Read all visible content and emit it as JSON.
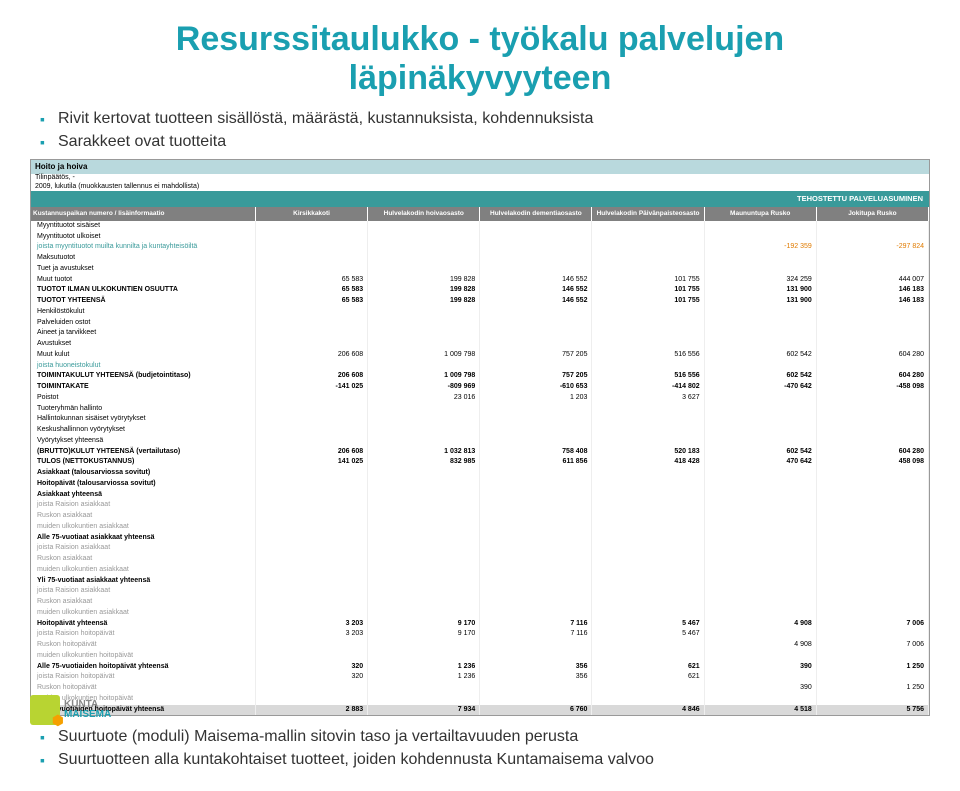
{
  "title_line1": "Resurssitaulukko - työkalu palvelujen",
  "title_line2": "läpinäkyvyyteen",
  "top_bullets": [
    "Rivit kertovat tuotteen sisällöstä, määrästä, kustannuksista, kohdennuksista",
    "Sarakkeet ovat tuotteita"
  ],
  "bottom_bullets": [
    "Suurtuote (moduli) Maisema-mallin sitovin taso ja vertailtavuuden perusta",
    "Suurtuotteen alla kuntakohtaiset tuotteet, joiden kohdennusta Kuntamaisema valvoo"
  ],
  "sheet": {
    "section_label": "Hoito ja hoiva",
    "meta": [
      "Tilinpäätös, -",
      "2009, lukutila (muokkausten tallennus ei mahdollista)"
    ],
    "band_title": "TEHOSTETTU PALVELUASUMINEN",
    "label_col_header": "Kustannuspaikan numero / lisäinformaatio",
    "columns": [
      "Kirsikkakoti",
      "Hulvelakodin hoivaosasto",
      "Hulvelakodin dementiaosasto",
      "Hulvelakodin Päivänpaisteosasto",
      "Maununtupa Rusko",
      "Jokitupa Rusko"
    ],
    "rows": [
      {
        "label": "Myyntituotot sisäiset",
        "vals": [
          "",
          "",
          "",
          "",
          "",
          ""
        ]
      },
      {
        "label": "Myyntituotot ulkoiset",
        "vals": [
          "",
          "",
          "",
          "",
          "",
          ""
        ]
      },
      {
        "label": "joista myyntituotot muilta kunnilta ja kuntayhteisöiltä",
        "vals": [
          "",
          "",
          "",
          "",
          "-192 359",
          "-297 824"
        ],
        "style": "teal orange-last2"
      },
      {
        "label": "Maksutuotot",
        "vals": [
          "",
          "",
          "",
          "",
          "",
          ""
        ]
      },
      {
        "label": "Tuet ja avustukset",
        "vals": [
          "",
          "",
          "",
          "",
          "",
          ""
        ]
      },
      {
        "label": "Muut tuotot",
        "vals": [
          "65 583",
          "199 828",
          "146 552",
          "101 755",
          "324 259",
          "444 007"
        ]
      },
      {
        "label": "TUOTOT ILMAN ULKOKUNTIEN OSUUTTA",
        "vals": [
          "65 583",
          "199 828",
          "146 552",
          "101 755",
          "131 900",
          "146 183"
        ],
        "style": "bold"
      },
      {
        "label": "TUOTOT YHTEENSÄ",
        "vals": [
          "65 583",
          "199 828",
          "146 552",
          "101 755",
          "131 900",
          "146 183"
        ],
        "style": "bold"
      },
      {
        "label": "Henkilöstökulut",
        "vals": [
          "",
          "",
          "",
          "",
          "",
          ""
        ]
      },
      {
        "label": "Palveluiden ostot",
        "vals": [
          "",
          "",
          "",
          "",
          "",
          ""
        ]
      },
      {
        "label": "Aineet ja tarvikkeet",
        "vals": [
          "",
          "",
          "",
          "",
          "",
          ""
        ]
      },
      {
        "label": "Avustukset",
        "vals": [
          "",
          "",
          "",
          "",
          "",
          ""
        ]
      },
      {
        "label": "Muut kulut",
        "vals": [
          "206 608",
          "1 009 798",
          "757 205",
          "516 556",
          "602 542",
          "604 280"
        ]
      },
      {
        "label": "joista huoneistokulut",
        "vals": [
          "",
          "",
          "",
          "",
          "",
          ""
        ],
        "style": "teal"
      },
      {
        "label": "TOIMINTAKULUT YHTEENSÄ (budjetointitaso)",
        "vals": [
          "206 608",
          "1 009 798",
          "757 205",
          "516 556",
          "602 542",
          "604 280"
        ],
        "style": "bold"
      },
      {
        "label": "TOIMINTAKATE",
        "vals": [
          "-141 025",
          "-809 969",
          "-610 653",
          "-414 802",
          "-470 642",
          "-458 098"
        ],
        "style": "bold"
      },
      {
        "label": "Poistot",
        "vals": [
          "",
          "23 016",
          "1 203",
          "3 627",
          "",
          ""
        ]
      },
      {
        "label": "Tuoteryhmän hallinto",
        "vals": [
          "",
          "",
          "",
          "",
          "",
          ""
        ]
      },
      {
        "label": "Hallintokunnan sisäiset vyörytykset",
        "vals": [
          "",
          "",
          "",
          "",
          "",
          ""
        ]
      },
      {
        "label": "Keskushallinnon vyörytykset",
        "vals": [
          "",
          "",
          "",
          "",
          "",
          ""
        ]
      },
      {
        "label": "Vyörytykset yhteensä",
        "vals": [
          "",
          "",
          "",
          "",
          "",
          ""
        ]
      },
      {
        "label": "(BRUTTO)KULUT YHTEENSÄ (vertailutaso)",
        "vals": [
          "206 608",
          "1 032 813",
          "758 408",
          "520 183",
          "602 542",
          "604 280"
        ],
        "style": "bold"
      },
      {
        "label": "TULOS (NETTOKUSTANNUS)",
        "vals": [
          "141 025",
          "832 985",
          "611 856",
          "418 428",
          "470 642",
          "458 098"
        ],
        "style": "bold"
      },
      {
        "label": "Asiakkaat (talousarviossa sovitut)",
        "vals": [
          "",
          "",
          "",
          "",
          "",
          ""
        ],
        "style": "bold"
      },
      {
        "label": "Hoitopäivät (talousarviossa sovitut)",
        "vals": [
          "",
          "",
          "",
          "",
          "",
          ""
        ],
        "style": "bold"
      },
      {
        "label": "Asiakkaat yhteensä",
        "vals": [
          "",
          "",
          "",
          "",
          "",
          ""
        ],
        "style": "bold"
      },
      {
        "label": "joista Raision asiakkaat",
        "vals": [
          "",
          "",
          "",
          "",
          "",
          ""
        ],
        "style": "muted"
      },
      {
        "label": "Ruskon asiakkaat",
        "vals": [
          "",
          "",
          "",
          "",
          "",
          ""
        ],
        "style": "muted"
      },
      {
        "label": "muiden ulkokuntien asiakkaat",
        "vals": [
          "",
          "",
          "",
          "",
          "",
          ""
        ],
        "style": "muted"
      },
      {
        "label": "Alle 75-vuotiaat asiakkaat yhteensä",
        "vals": [
          "",
          "",
          "",
          "",
          "",
          ""
        ],
        "style": "bold"
      },
      {
        "label": "joista Raision asiakkaat",
        "vals": [
          "",
          "",
          "",
          "",
          "",
          ""
        ],
        "style": "muted"
      },
      {
        "label": "Ruskon asiakkaat",
        "vals": [
          "",
          "",
          "",
          "",
          "",
          ""
        ],
        "style": "muted"
      },
      {
        "label": "muiden ulkokuntien asiakkaat",
        "vals": [
          "",
          "",
          "",
          "",
          "",
          ""
        ],
        "style": "muted"
      },
      {
        "label": "Yli 75-vuotiaat asiakkaat yhteensä",
        "vals": [
          "",
          "",
          "",
          "",
          "",
          ""
        ],
        "style": "bold"
      },
      {
        "label": "joista Raision asiakkaat",
        "vals": [
          "",
          "",
          "",
          "",
          "",
          ""
        ],
        "style": "muted"
      },
      {
        "label": "Ruskon asiakkaat",
        "vals": [
          "",
          "",
          "",
          "",
          "",
          ""
        ],
        "style": "muted"
      },
      {
        "label": "muiden ulkokuntien asiakkaat",
        "vals": [
          "",
          "",
          "",
          "",
          "",
          ""
        ],
        "style": "muted"
      },
      {
        "label": "Hoitopäivät yhteensä",
        "vals": [
          "3 203",
          "9 170",
          "7 116",
          "5 467",
          "4 908",
          "7 006"
        ],
        "style": "bold"
      },
      {
        "label": "joista Raision hoitopäivät",
        "vals": [
          "3 203",
          "9 170",
          "7 116",
          "5 467",
          "",
          ""
        ],
        "style": "muted"
      },
      {
        "label": "Ruskon hoitopäivät",
        "vals": [
          "",
          "",
          "",
          "",
          "4 908",
          "7 006"
        ],
        "style": "muted"
      },
      {
        "label": "muiden ulkokuntien hoitopäivät",
        "vals": [
          "",
          "",
          "",
          "",
          "",
          ""
        ],
        "style": "muted"
      },
      {
        "label": "Alle 75-vuotiaiden hoitopäivät yhteensä",
        "vals": [
          "320",
          "1 236",
          "356",
          "621",
          "390",
          "1 250"
        ],
        "style": "bold"
      },
      {
        "label": "joista Raision hoitopäivät",
        "vals": [
          "320",
          "1 236",
          "356",
          "621",
          "",
          ""
        ],
        "style": "muted"
      },
      {
        "label": "Ruskon hoitopäivät",
        "vals": [
          "",
          "",
          "",
          "",
          "390",
          "1 250"
        ],
        "style": "muted"
      },
      {
        "label": "muiden ulkokuntien hoitopäivät",
        "vals": [
          "",
          "",
          "",
          "",
          "",
          ""
        ],
        "style": "muted"
      },
      {
        "label": "Yli 75-vuotiaiden hoitopäivät yhteensä",
        "vals": [
          "2 883",
          "7 934",
          "6 760",
          "4 846",
          "4 518",
          "5 756"
        ],
        "style": "bold gray"
      }
    ]
  },
  "logo": {
    "l1": "KUNTA",
    "l2": "MAISEMA"
  },
  "colors": {
    "title": "#1a9fb0",
    "band": "#399a9a",
    "header_gray": "#808080",
    "section_bg": "#b9d9dd",
    "orange": "#e07b00"
  }
}
